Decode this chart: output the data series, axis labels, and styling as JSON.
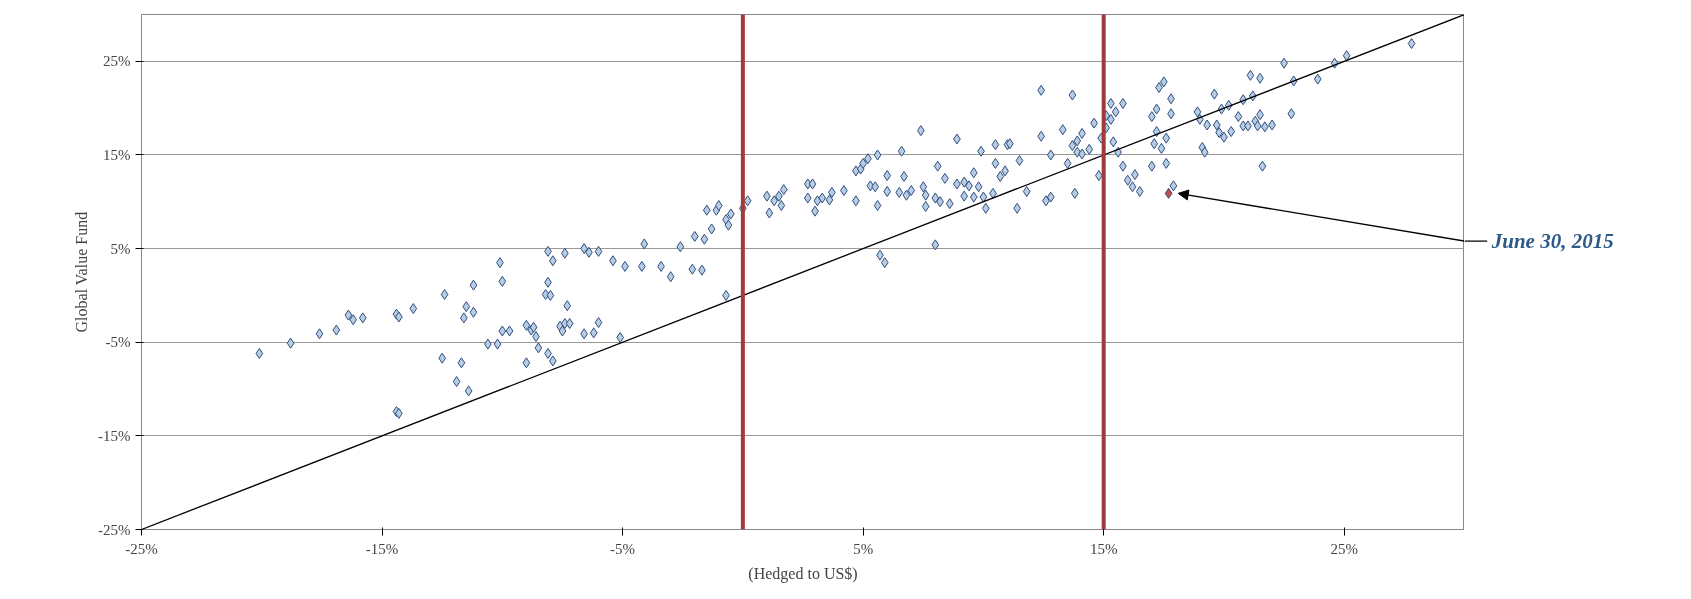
{
  "chart_data": {
    "type": "scatter",
    "xlabel": "(Hedged to US$)",
    "ylabel": "Global Value Fund",
    "xlim": [
      -25,
      30
    ],
    "ylim": [
      -25,
      30
    ],
    "xticks": [
      {
        "value": -25,
        "label": "-25%"
      },
      {
        "value": -15,
        "label": "-15%"
      },
      {
        "value": -5,
        "label": "-5%"
      },
      {
        "value": 5,
        "label": "5%"
      },
      {
        "value": 15,
        "label": "15%"
      },
      {
        "value": 25,
        "label": "25%"
      }
    ],
    "yticks": [
      {
        "value": -25,
        "label": "-25%"
      },
      {
        "value": -15,
        "label": "-15%"
      },
      {
        "value": -5,
        "label": "-5%"
      },
      {
        "value": 5,
        "label": "5%"
      },
      {
        "value": 15,
        "label": "15%"
      },
      {
        "value": 25,
        "label": "25%"
      }
    ],
    "grid": "y",
    "series": [
      {
        "marker": "diamond",
        "color": "#b8cce4",
        "x": [
          -20.1,
          -18.8,
          -17.6,
          -16.9,
          -16.4,
          -16.2,
          -15.8,
          -14.4,
          -14.3,
          -14.4,
          -14.3,
          -13.7,
          -12.4,
          -12.5,
          -11.9,
          -11.7,
          -11.5,
          -11.6,
          -11.4,
          -11.2,
          -11.2,
          -10.6,
          -10.2,
          -10.1,
          -10.0,
          -10.0,
          -9.7,
          -9.0,
          -9.0,
          -8.8,
          -8.7,
          -8.6,
          -8.5,
          -8.2,
          -8.1,
          -8.1,
          -8.1,
          -8.0,
          -7.9,
          -7.9,
          -7.6,
          -7.5,
          -7.4,
          -7.4,
          -7.3,
          -7.2,
          -6.6,
          -6.6,
          -6.4,
          -6.2,
          -6.0,
          -6.0,
          -5.4,
          -5.1,
          -4.9,
          -4.2,
          -4.1,
          -3.4,
          -3.0,
          -2.6,
          -2.1,
          -2.0,
          -1.7,
          -1.6,
          -1.5,
          -1.3,
          -1.1,
          -1.0,
          -0.7,
          -0.7,
          -0.6,
          -0.5,
          0.0,
          0.2,
          1.0,
          1.1,
          1.3,
          1.5,
          1.6,
          1.7,
          2.7,
          2.7,
          2.9,
          3.0,
          3.1,
          3.3,
          3.6,
          3.7,
          4.2,
          4.7,
          4.7,
          4.9,
          5.0,
          5.2,
          5.3,
          5.5,
          5.6,
          5.6,
          5.7,
          5.9,
          6.0,
          6.0,
          6.5,
          6.6,
          6.7,
          6.8,
          7.0,
          7.4,
          7.5,
          7.6,
          7.6,
          8.0,
          8.0,
          8.1,
          8.2,
          8.4,
          8.6,
          8.9,
          8.9,
          9.2,
          9.2,
          9.4,
          9.6,
          9.6,
          9.8,
          9.9,
          10.0,
          10.1,
          10.4,
          10.5,
          10.5,
          10.7,
          10.9,
          11.0,
          11.1,
          11.4,
          11.5,
          11.8,
          12.4,
          12.4,
          12.6,
          12.8,
          12.8,
          13.3,
          13.5,
          13.7,
          13.7,
          13.8,
          13.9,
          13.9,
          14.1,
          14.1,
          14.4,
          14.6,
          14.8,
          14.9,
          15.1,
          15.1,
          15.3,
          15.3,
          15.4,
          15.5,
          15.6,
          15.8,
          15.8,
          16.0,
          16.2,
          16.3,
          16.5,
          17.0,
          17.0,
          17.1,
          17.2,
          17.2,
          17.3,
          17.4,
          17.5,
          17.6,
          17.6,
          17.8,
          17.8,
          17.9,
          18.9,
          19.0,
          19.1,
          19.2,
          19.3,
          19.6,
          19.7,
          19.8,
          19.9,
          20.0,
          20.2,
          20.3,
          20.6,
          20.8,
          20.8,
          21.0,
          21.1,
          21.2,
          21.3,
          21.4,
          21.5,
          21.5,
          21.6,
          21.7,
          22.0,
          22.5,
          22.8,
          22.9,
          23.9,
          24.6,
          25.1,
          27.8
        ],
        "values": [
          -6.2,
          -5.1,
          -4.1,
          -3.7,
          -2.1,
          -2.6,
          -2.4,
          -2.0,
          -2.3,
          -12.4,
          -12.6,
          -1.4,
          0.1,
          -6.7,
          -9.2,
          -7.2,
          -1.2,
          -2.4,
          -10.2,
          -1.8,
          1.1,
          -5.2,
          -5.2,
          3.5,
          1.5,
          -3.8,
          -3.8,
          -3.2,
          -7.2,
          -3.7,
          -3.4,
          -4.4,
          -5.6,
          0.1,
          1.4,
          4.7,
          -6.2,
          0.0,
          3.7,
          -7.0,
          -3.3,
          -3.8,
          4.5,
          -3.0,
          -1.1,
          -3.0,
          5.0,
          -4.1,
          4.6,
          -4.0,
          4.7,
          -2.9,
          3.7,
          -4.5,
          3.1,
          3.1,
          5.5,
          3.1,
          2.0,
          5.2,
          2.8,
          6.3,
          2.7,
          6.0,
          9.1,
          7.1,
          9.1,
          9.6,
          8.1,
          0.0,
          7.5,
          8.7,
          9.3,
          10.1,
          10.6,
          8.8,
          10.1,
          10.6,
          9.6,
          11.3,
          11.9,
          10.4,
          11.9,
          9.0,
          10.1,
          10.4,
          10.2,
          11.0,
          11.2,
          10.1,
          13.3,
          13.5,
          14.1,
          14.6,
          11.7,
          11.6,
          9.6,
          15.0,
          4.3,
          3.5,
          12.8,
          11.1,
          11.0,
          15.4,
          12.7,
          10.7,
          11.2,
          17.6,
          11.6,
          9.5,
          10.7,
          10.4,
          5.4,
          13.8,
          10.0,
          12.5,
          9.8,
          16.7,
          11.9,
          10.6,
          12.1,
          11.7,
          10.5,
          13.1,
          11.6,
          15.4,
          10.5,
          9.3,
          10.9,
          16.1,
          14.1,
          12.7,
          13.3,
          16.1,
          16.2,
          9.3,
          14.4,
          11.1,
          21.9,
          17.0,
          10.1,
          10.5,
          15.0,
          17.7,
          14.1,
          21.4,
          16.0,
          10.9,
          15.3,
          16.5,
          17.3,
          15.1,
          15.6,
          18.4,
          12.8,
          16.8,
          19.2,
          17.9,
          20.5,
          18.8,
          16.4,
          19.6,
          15.3,
          13.8,
          20.5,
          12.3,
          11.6,
          12.9,
          11.1,
          13.8,
          19.1,
          16.2,
          19.9,
          17.5,
          22.2,
          15.7,
          22.8,
          14.1,
          16.8,
          19.4,
          21.0,
          11.7,
          19.6,
          18.8,
          15.8,
          15.3,
          18.2,
          21.5,
          18.2,
          17.4,
          19.9,
          16.9,
          20.3,
          17.5,
          19.1,
          20.9,
          18.1,
          18.1,
          23.5,
          21.3,
          18.6,
          18.1,
          19.3,
          23.2,
          13.8,
          18.0,
          18.2,
          24.8,
          19.4,
          22.9,
          23.1,
          24.8,
          25.6,
          26.9
        ]
      },
      {
        "marker": "diamond",
        "color": "#c0504d",
        "x": [
          17.7
        ],
        "values": [
          10.9
        ]
      },
      {
        "type": "line",
        "color": "#000000",
        "x": [
          -25,
          30
        ],
        "values": [
          -25,
          30
        ]
      }
    ],
    "ref_lines": [
      {
        "axis": "x",
        "value": 0,
        "color": "#a33a3a"
      },
      {
        "axis": "x",
        "value": 15,
        "color": "#a33a3a"
      }
    ],
    "annotations": [
      "June 30, 2015"
    ]
  }
}
